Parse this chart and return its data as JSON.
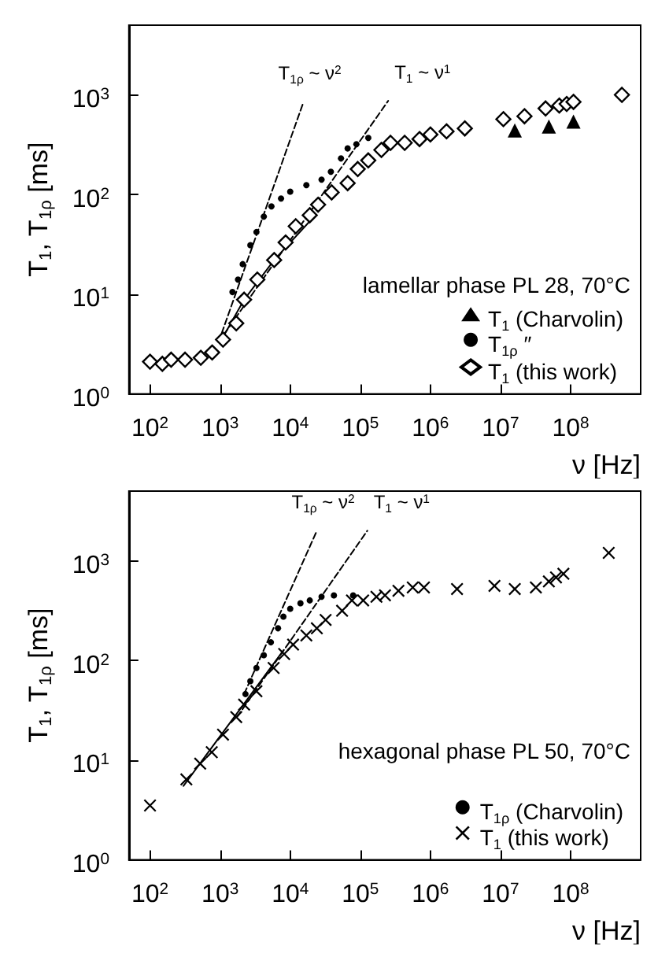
{
  "chart_data": [
    {
      "type": "scatter",
      "xlabel": "ν [Hz]",
      "ylabel": "T$_{1}$, T$_{1ρ}$ [ms]",
      "log": "xy",
      "xlim": [
        50,
        1000000000
      ],
      "ylim": [
        1,
        5000
      ],
      "xticks": [
        {
          "value": 100,
          "label": "10$^{2}$"
        },
        {
          "value": 1000,
          "label": "10$^{3}$"
        },
        {
          "value": 10000,
          "label": "10$^{4}$"
        },
        {
          "value": 100000,
          "label": "10$^{5}$"
        },
        {
          "value": 1000000,
          "label": "10$^{6}$"
        },
        {
          "value": 10000000,
          "label": "10$^{7}$"
        },
        {
          "value": 100000000,
          "label": "10$^{8}$"
        }
      ],
      "yticks": [
        {
          "value": 1,
          "label": "10$^{0}$"
        },
        {
          "value": 10,
          "label": "10$^{1}$"
        },
        {
          "value": 100,
          "label": "10$^{2}$"
        },
        {
          "value": 1000,
          "label": "10$^{3}$"
        }
      ],
      "legend": "bottom right",
      "annotations": [
        "lamellar phase PL 28, 70°C",
        "T$_{1ρ}$ ~ ν$^{2}$",
        "T$_{1}$ ~ ν$^{1}$"
      ],
      "series": [
        {
          "name": "T$_{1}$ (Charvolin)",
          "color": "#000000",
          "marker": "triangle",
          "x": [
            16000000,
            49000000,
            110000000
          ],
          "values": [
            440,
            480,
            540
          ]
        },
        {
          "name": "T$_{1ρ}$ ″",
          "color": "#000000",
          "marker": "circle",
          "x": [
            1500,
            1800,
            2100,
            2700,
            3300,
            4200,
            5400,
            7400,
            10000,
            17000,
            28000,
            38000,
            53000,
            66000,
            88000,
            130000
          ],
          "values": [
            10.5,
            14,
            20,
            31,
            42,
            60,
            76,
            91,
            107,
            124,
            141,
            169,
            230,
            290,
            320,
            370
          ]
        },
        {
          "name": "T$_{1}$ (this work)",
          "color": "#000000",
          "marker": "diamond",
          "x": [
            100,
            150,
            200,
            316,
            530,
            770,
            1100,
            1700,
            2200,
            3400,
            5900,
            8600,
            12000,
            19000,
            25000,
            39000,
            66000,
            92000,
            130000,
            200000,
            270000,
            430000,
            700000,
            1000000,
            1700000,
            3100000,
            11000000,
            22000000,
            44000000,
            69000000,
            88000000,
            110000000,
            540000000
          ],
          "values": [
            2.1,
            2.0,
            2.2,
            2.2,
            2.3,
            2.6,
            3.5,
            5.1,
            8.8,
            14,
            22,
            33,
            48,
            62,
            79,
            105,
            130,
            180,
            220,
            280,
            330,
            330,
            360,
            400,
            430,
            460,
            570,
            610,
            730,
            780,
            810,
            850,
            1000
          ]
        },
        {
          "type": "line",
          "color": "#000000",
          "line_style": "dashed",
          "x": [
            950,
            15500
          ],
          "values": [
            3.3,
            850
          ]
        },
        {
          "type": "line",
          "color": "#000000",
          "line_style": "dashed",
          "x": [
            950,
            250000
          ],
          "values": [
            3.3,
            870
          ]
        },
        {
          "type": "line",
          "color": "#000000",
          "line_style": "solid",
          "x": [
            1050,
            2200,
            5900,
            20000
          ],
          "values": [
            3.5,
            8.8,
            22,
            56
          ]
        }
      ]
    },
    {
      "type": "scatter",
      "xlabel": "ν [Hz]",
      "ylabel": "T$_{1}$, T$_{1ρ}$ [ms]",
      "log": "xy",
      "xlim": [
        50,
        1000000000
      ],
      "ylim": [
        1,
        5000
      ],
      "xticks": [
        {
          "value": 100,
          "label": "10$^{2}$"
        },
        {
          "value": 1000,
          "label": "10$^{3}$"
        },
        {
          "value": 10000,
          "label": "10$^{4}$"
        },
        {
          "value": 100000,
          "label": "10$^{5}$"
        },
        {
          "value": 1000000,
          "label": "10$^{6}$"
        },
        {
          "value": 10000000,
          "label": "10$^{7}$"
        },
        {
          "value": 100000000,
          "label": "10$^{8}$"
        }
      ],
      "yticks": [
        {
          "value": 1,
          "label": "10$^{0}$"
        },
        {
          "value": 10,
          "label": "10$^{1}$"
        },
        {
          "value": 100,
          "label": "10$^{2}$"
        },
        {
          "value": 1000,
          "label": "10$^{3}$"
        }
      ],
      "legend": "bottom right",
      "annotations": [
        "hexagonal phase PL 50, 70°C",
        "T$_{1ρ}$ ~ ν$^{2}$",
        "T$_{1}$ ~ ν$^{1}$"
      ],
      "series": [
        {
          "name": "T$_{1ρ}$ (Charvolin)",
          "color": "#000000",
          "marker": "circle",
          "x": [
            2300,
            2700,
            3300,
            4200,
            5300,
            6700,
            8000,
            10000,
            14000,
            19000,
            28000,
            42000,
            79000
          ],
          "values": [
            46,
            62,
            84,
            113,
            152,
            210,
            275,
            330,
            375,
            400,
            435,
            450,
            450
          ]
        },
        {
          "name": "T$_{1}$ (this work)",
          "color": "#000000",
          "marker": "cross",
          "x": [
            100,
            330,
            520,
            760,
            1100,
            1700,
            2200,
            3300,
            5800,
            8200,
            11000,
            17000,
            24000,
            32000,
            55000,
            76000,
            110000,
            170000,
            225000,
            350000,
            560000,
            810000,
            2400000,
            8200000,
            16000000,
            32000000,
            49000000,
            62000000,
            79000000,
            350000000
          ],
          "values": [
            3.5,
            6.4,
            9.2,
            12,
            18,
            27,
            36,
            49,
            84,
            116,
            144,
            178,
            210,
            255,
            315,
            400,
            400,
            435,
            450,
            500,
            540,
            540,
            520,
            560,
            520,
            540,
            620,
            680,
            740,
            1200
          ]
        },
        {
          "type": "line",
          "color": "#000000",
          "line_style": "dashed",
          "x": [
            2200,
            24000
          ],
          "values": [
            46,
            2000
          ]
        },
        {
          "type": "line",
          "color": "#000000",
          "line_style": "dashed",
          "x": [
            1740,
            126000
          ],
          "values": [
            27,
            2000
          ]
        },
        {
          "type": "line",
          "color": "#000000",
          "line_style": "solid",
          "x": [
            300,
            8000
          ],
          "values": [
            5.5,
            126
          ]
        }
      ]
    }
  ]
}
